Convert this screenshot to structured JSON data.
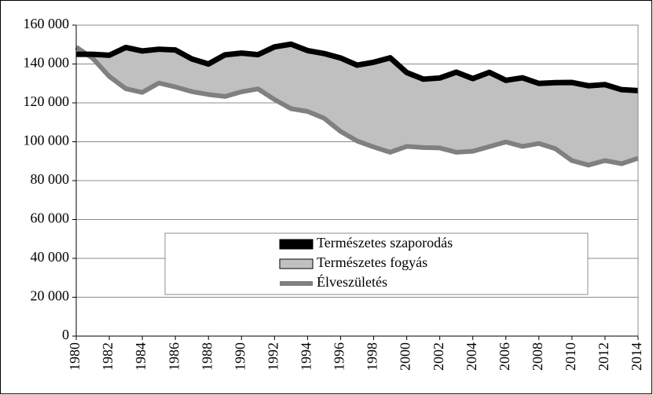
{
  "chart_data": {
    "type": "line",
    "x": [
      1980,
      1981,
      1982,
      1983,
      1984,
      1985,
      1986,
      1987,
      1988,
      1989,
      1990,
      1991,
      1992,
      1993,
      1994,
      1995,
      1996,
      1997,
      1998,
      1999,
      2000,
      2001,
      2002,
      2003,
      2004,
      2005,
      2006,
      2007,
      2008,
      2009,
      2010,
      2011,
      2012,
      2013,
      2014
    ],
    "series": [
      {
        "name": "Természetes szaporodás",
        "color": "#000000",
        "values": [
          145000,
          145000,
          144500,
          148500,
          146700,
          147600,
          147200,
          142600,
          140000,
          144700,
          145600,
          144800,
          148800,
          150200,
          146900,
          145400,
          143100,
          139400,
          140900,
          143200,
          135600,
          132200,
          132800,
          135800,
          132500,
          135700,
          131600,
          132900,
          130000,
          130400,
          130500,
          128800,
          129400,
          126800,
          126300
        ]
      },
      {
        "name": "Élveszületés",
        "color": "#808080",
        "values": [
          148700,
          142900,
          133600,
          127300,
          125400,
          130200,
          128200,
          125800,
          124300,
          123300,
          125700,
          127200,
          121700,
          117000,
          115600,
          112100,
          105300,
          100400,
          97300,
          94600,
          97600,
          97000,
          96800,
          94600,
          95100,
          97500,
          99900,
          97600,
          99100,
          96400,
          90300,
          88000,
          90300,
          88700,
          91500
        ]
      }
    ],
    "fill_between": {
      "name": "Természetes fogyás",
      "color": "#c0c0c0"
    },
    "xlim": [
      1980,
      2014
    ],
    "xticks": [
      1980,
      1982,
      1984,
      1986,
      1988,
      1990,
      1992,
      1994,
      1996,
      1998,
      2000,
      2002,
      2004,
      2006,
      2008,
      2010,
      2012,
      2014
    ],
    "ylim": [
      0,
      160000
    ],
    "yticks": [
      0,
      {
        "value": 20000,
        "label": "20 000"
      },
      {
        "value": 40000,
        "label": "40 000"
      },
      {
        "value": 60000,
        "label": "60 000"
      },
      {
        "value": 80000,
        "label": "80 000"
      },
      {
        "value": 100000,
        "label": "100 000"
      },
      {
        "value": 120000,
        "label": "120 000"
      },
      {
        "value": 140000,
        "label": "140 000"
      },
      {
        "value": 160000,
        "label": "160 000"
      }
    ],
    "grid": true
  }
}
